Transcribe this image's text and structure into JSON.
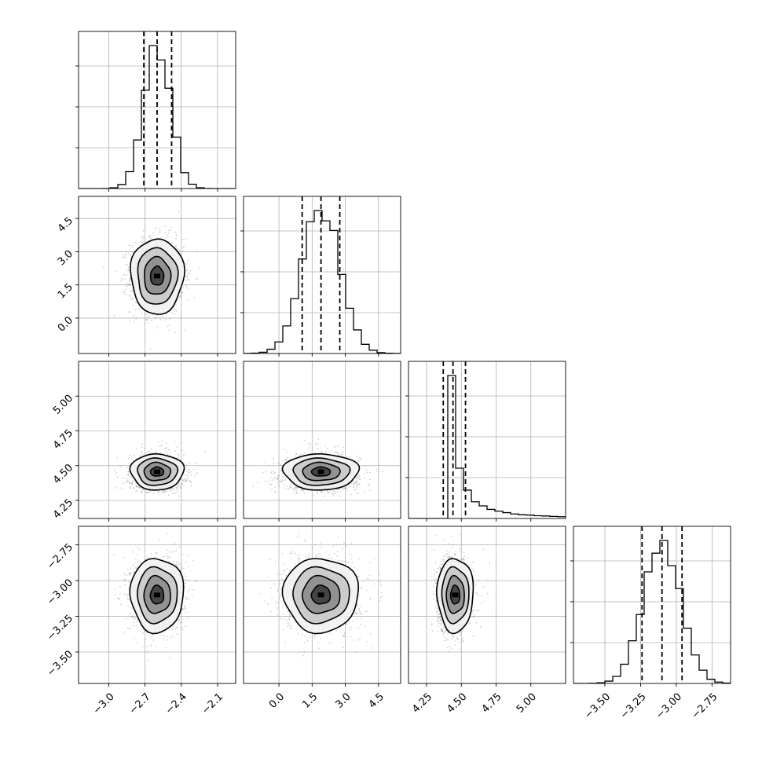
{
  "chart_data": {
    "type": "corner",
    "grid": true,
    "parameters": [
      {
        "range": [
          -3.25,
          -1.95
        ],
        "ticks": [
          -3.0,
          -2.7,
          -2.4,
          -2.1
        ],
        "tick_labels": [
          "−3.0",
          "−2.7",
          "−2.4",
          "−2.1"
        ],
        "mean": -2.6,
        "sd": 0.11,
        "skew": 0.0,
        "quantiles": [
          -2.71,
          -2.6,
          -2.48
        ]
      },
      {
        "range": [
          -1.6,
          5.5
        ],
        "ticks": [
          0.0,
          1.5,
          3.0,
          4.5
        ],
        "tick_labels": [
          "0.0",
          "1.5",
          "3.0",
          "4.5"
        ],
        "mean": 1.9,
        "sd": 0.85,
        "skew": 0.0,
        "quantiles": [
          1.05,
          1.9,
          2.75
        ]
      },
      {
        "range": [
          4.12,
          5.25
        ],
        "ticks": [
          4.25,
          4.5,
          4.75,
          5.0
        ],
        "tick_labels": [
          "4.25",
          "4.50",
          "4.75",
          "5.00"
        ],
        "mean": 4.44,
        "sd": 0.065,
        "skew": 0.09,
        "quantiles": [
          4.37,
          4.44,
          4.53
        ]
      },
      {
        "range": [
          -3.72,
          -2.62
        ],
        "ticks": [
          -3.5,
          -3.25,
          -3.0,
          -2.75
        ],
        "tick_labels": [
          "−3.50",
          "−3.25",
          "−3.00",
          "−2.75"
        ],
        "mean": -3.1,
        "sd": 0.13,
        "skew": 0.0,
        "quantiles": [
          -3.24,
          -3.1,
          -2.96
        ]
      }
    ],
    "histogram": {
      "bins": 20,
      "peak_fraction": 0.91
    },
    "contour_levels": [
      0.118,
      0.393,
      0.675,
      0.865
    ],
    "scatter_samples": 1500,
    "colors": {
      "line": "#000000",
      "grid": "#b0b0b0",
      "scatter": "#7f7f7f",
      "fill_low": "#ffffff",
      "fill_high": "#000000"
    }
  }
}
